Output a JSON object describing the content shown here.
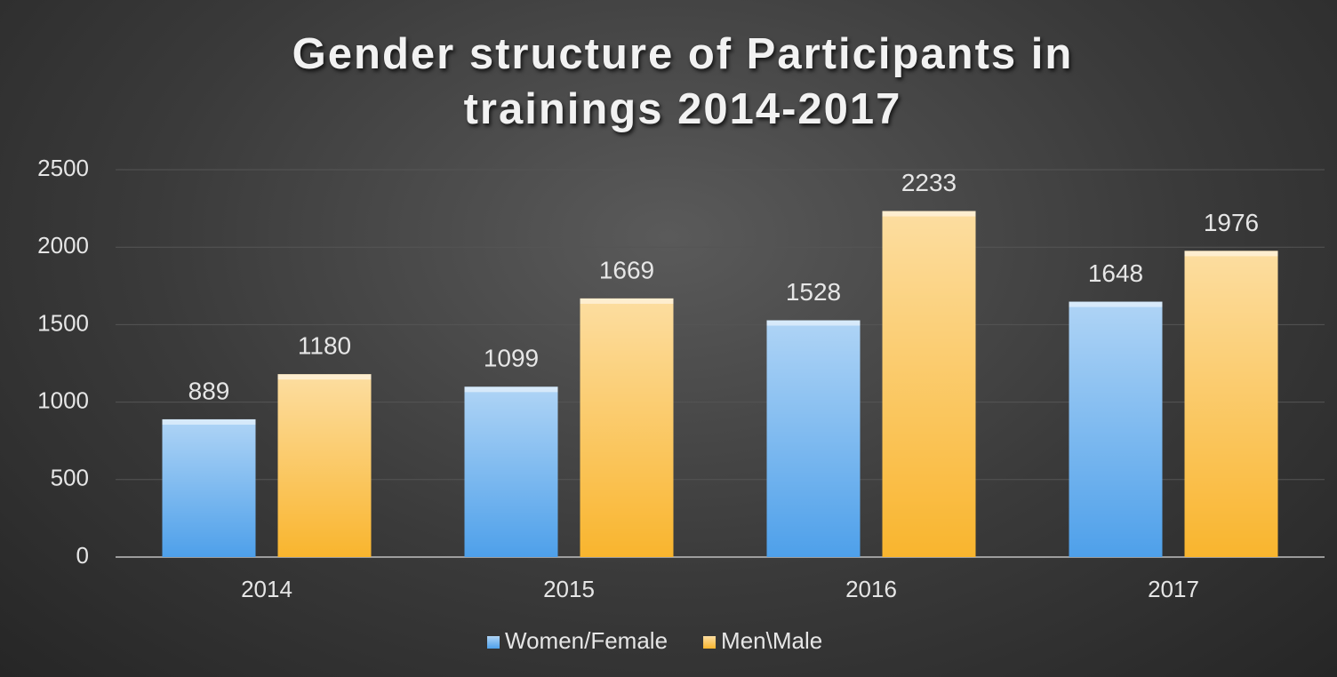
{
  "chart_data": {
    "type": "bar",
    "title": "Gender structure of Participants in trainings 2014-2017",
    "categories": [
      "2014",
      "2015",
      "2016",
      "2017"
    ],
    "series": [
      {
        "name": "Women/Female",
        "color": "#4ea0ea",
        "values": [
          889,
          1099,
          1528,
          1648
        ]
      },
      {
        "name": "Men\\Male",
        "color": "#f9b52e",
        "values": [
          1180,
          1669,
          2233,
          1976
        ]
      }
    ],
    "ylim": [
      0,
      2500
    ],
    "yticks": [
      0,
      500,
      1000,
      1500,
      2000,
      2500
    ],
    "grid": true,
    "legend": "bottom"
  }
}
